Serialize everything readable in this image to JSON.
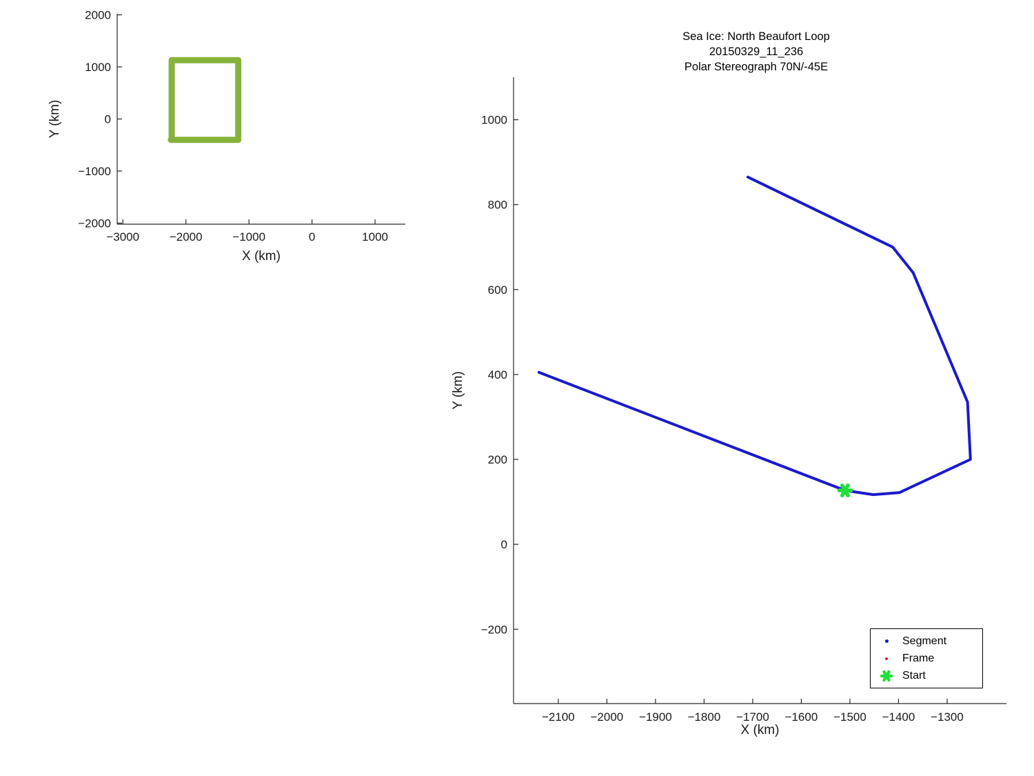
{
  "figure": {
    "background": "#ffffff"
  },
  "colors": {
    "segment_blue": "#1a1acd",
    "frame_red": "#e01b1b",
    "start_green": "#1fdf3b",
    "loop_green": "#86b23b",
    "axis": "#262626"
  },
  "chart_data": [
    {
      "id": "overview",
      "type": "line",
      "title": [],
      "xlabel": "X (km)",
      "ylabel": "Y (km)",
      "xlim": [
        -3090,
        1480
      ],
      "ylim": [
        -2020,
        2020
      ],
      "xticks": [
        -3000,
        -2000,
        -1000,
        0,
        1000
      ],
      "yticks": [
        -2000,
        -1000,
        0,
        1000,
        2000
      ],
      "grid": false,
      "series": [
        {
          "name": "loop-outline",
          "color": "#86b23b",
          "line_width": 9,
          "points": [
            [
              -2225,
              -355
            ],
            [
              -2225,
              1130
            ],
            [
              -1170,
              1130
            ],
            [
              -1170,
              -400
            ],
            [
              -2238,
              -400
            ]
          ]
        }
      ],
      "markers": [],
      "legend": null
    },
    {
      "id": "main",
      "type": "line",
      "title": [
        "Sea Ice: North Beaufort Loop",
        "20150329_11_236",
        "Polar Stereograph 70N/-45E"
      ],
      "xlabel": "X (km)",
      "ylabel": "Y (km)",
      "xlim": [
        -2192,
        -1178
      ],
      "ylim": [
        -375,
        1100
      ],
      "xticks": [
        -2100,
        -2000,
        -1900,
        -1800,
        -1700,
        -1600,
        -1500,
        -1400,
        -1300
      ],
      "yticks": [
        -200,
        0,
        200,
        400,
        600,
        800,
        1000
      ],
      "grid": false,
      "series": [
        {
          "name": "segment-track",
          "color": "#1a1acd",
          "line_width": 4,
          "points": [
            [
              -2140,
              405
            ],
            [
              -1510,
              127
            ],
            [
              -1452,
              117
            ],
            [
              -1398,
              122
            ],
            [
              -1252,
              200
            ],
            [
              -1258,
              335
            ],
            [
              -1370,
              640
            ],
            [
              -1412,
              700
            ],
            [
              -1710,
              865
            ]
          ]
        }
      ],
      "markers": [
        {
          "name": "start-marker",
          "shape": "asterisk",
          "color": "#1fdf3b",
          "size": 17,
          "x": -1510,
          "y": 127
        }
      ],
      "legend": {
        "position": "lower right",
        "entries": [
          {
            "label": "Segment",
            "marker": "dot",
            "color": "#1a1acd",
            "size": 5
          },
          {
            "label": "Frame",
            "marker": "dot",
            "color": "#e01b1b",
            "size": 4
          },
          {
            "label": "Start",
            "marker": "asterisk",
            "color": "#1fdf3b",
            "size": 14
          }
        ]
      }
    }
  ]
}
